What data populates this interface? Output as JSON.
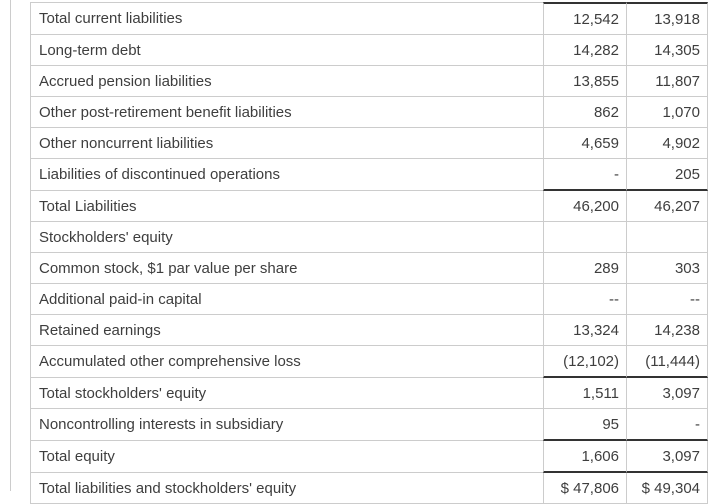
{
  "page": {
    "background_color": "#ffffff",
    "divider_color": "#cccccc"
  },
  "table": {
    "name": "balance-sheet-liabilities-and-equity",
    "border_light_color": "#cccccc",
    "border_dark_color": "#333333",
    "text_color": "#3e3e3e",
    "columns": [
      "label",
      "value_col_1",
      "value_col_2"
    ],
    "rows": [
      {
        "label": "Total current liabilities",
        "v1": "12,542",
        "v2": "13,918",
        "dark_top": true,
        "dark_bottom": false
      },
      {
        "label": "Long-term debt",
        "v1": "14,282",
        "v2": "14,305",
        "dark_top": false,
        "dark_bottom": false
      },
      {
        "label": "Accrued pension liabilities",
        "v1": "13,855",
        "v2": "11,807",
        "dark_top": false,
        "dark_bottom": false
      },
      {
        "label": "Other post-retirement benefit liabilities",
        "v1": "862",
        "v2": "1,070",
        "dark_top": false,
        "dark_bottom": false
      },
      {
        "label": "Other noncurrent liabilities",
        "v1": "4,659",
        "v2": "4,902",
        "dark_top": false,
        "dark_bottom": false
      },
      {
        "label": "Liabilities of discontinued operations",
        "v1": "-",
        "v2": "205",
        "dark_top": false,
        "dark_bottom": true
      },
      {
        "label": "Total Liabilities",
        "v1": "46,200",
        "v2": "46,207",
        "dark_top": false,
        "dark_bottom": false
      },
      {
        "label": "Stockholders' equity",
        "v1": "",
        "v2": "",
        "dark_top": false,
        "dark_bottom": false
      },
      {
        "label": "Common stock, $1 par value per share",
        "v1": "289",
        "v2": "303",
        "dark_top": false,
        "dark_bottom": false
      },
      {
        "label": "Additional paid-in capital",
        "v1": "--",
        "v2": "--",
        "dark_top": false,
        "dark_bottom": false
      },
      {
        "label": "Retained earnings",
        "v1": "13,324",
        "v2": "14,238",
        "dark_top": false,
        "dark_bottom": false
      },
      {
        "label": "Accumulated other comprehensive loss",
        "v1": "(12,102)",
        "v2": "(11,444)",
        "dark_top": false,
        "dark_bottom": true
      },
      {
        "label": "Total stockholders' equity",
        "v1": "1,511",
        "v2": "3,097",
        "dark_top": false,
        "dark_bottom": false
      },
      {
        "label": "Noncontrolling interests in subsidiary",
        "v1": "95",
        "v2": "-",
        "dark_top": false,
        "dark_bottom": true
      },
      {
        "label": "Total equity",
        "v1": "1,606",
        "v2": "3,097",
        "dark_top": false,
        "dark_bottom": true
      },
      {
        "label": "Total liabilities and stockholders' equity",
        "v1": "$ 47,806",
        "v2": "$ 49,304",
        "dark_top": false,
        "dark_bottom": false
      }
    ]
  }
}
